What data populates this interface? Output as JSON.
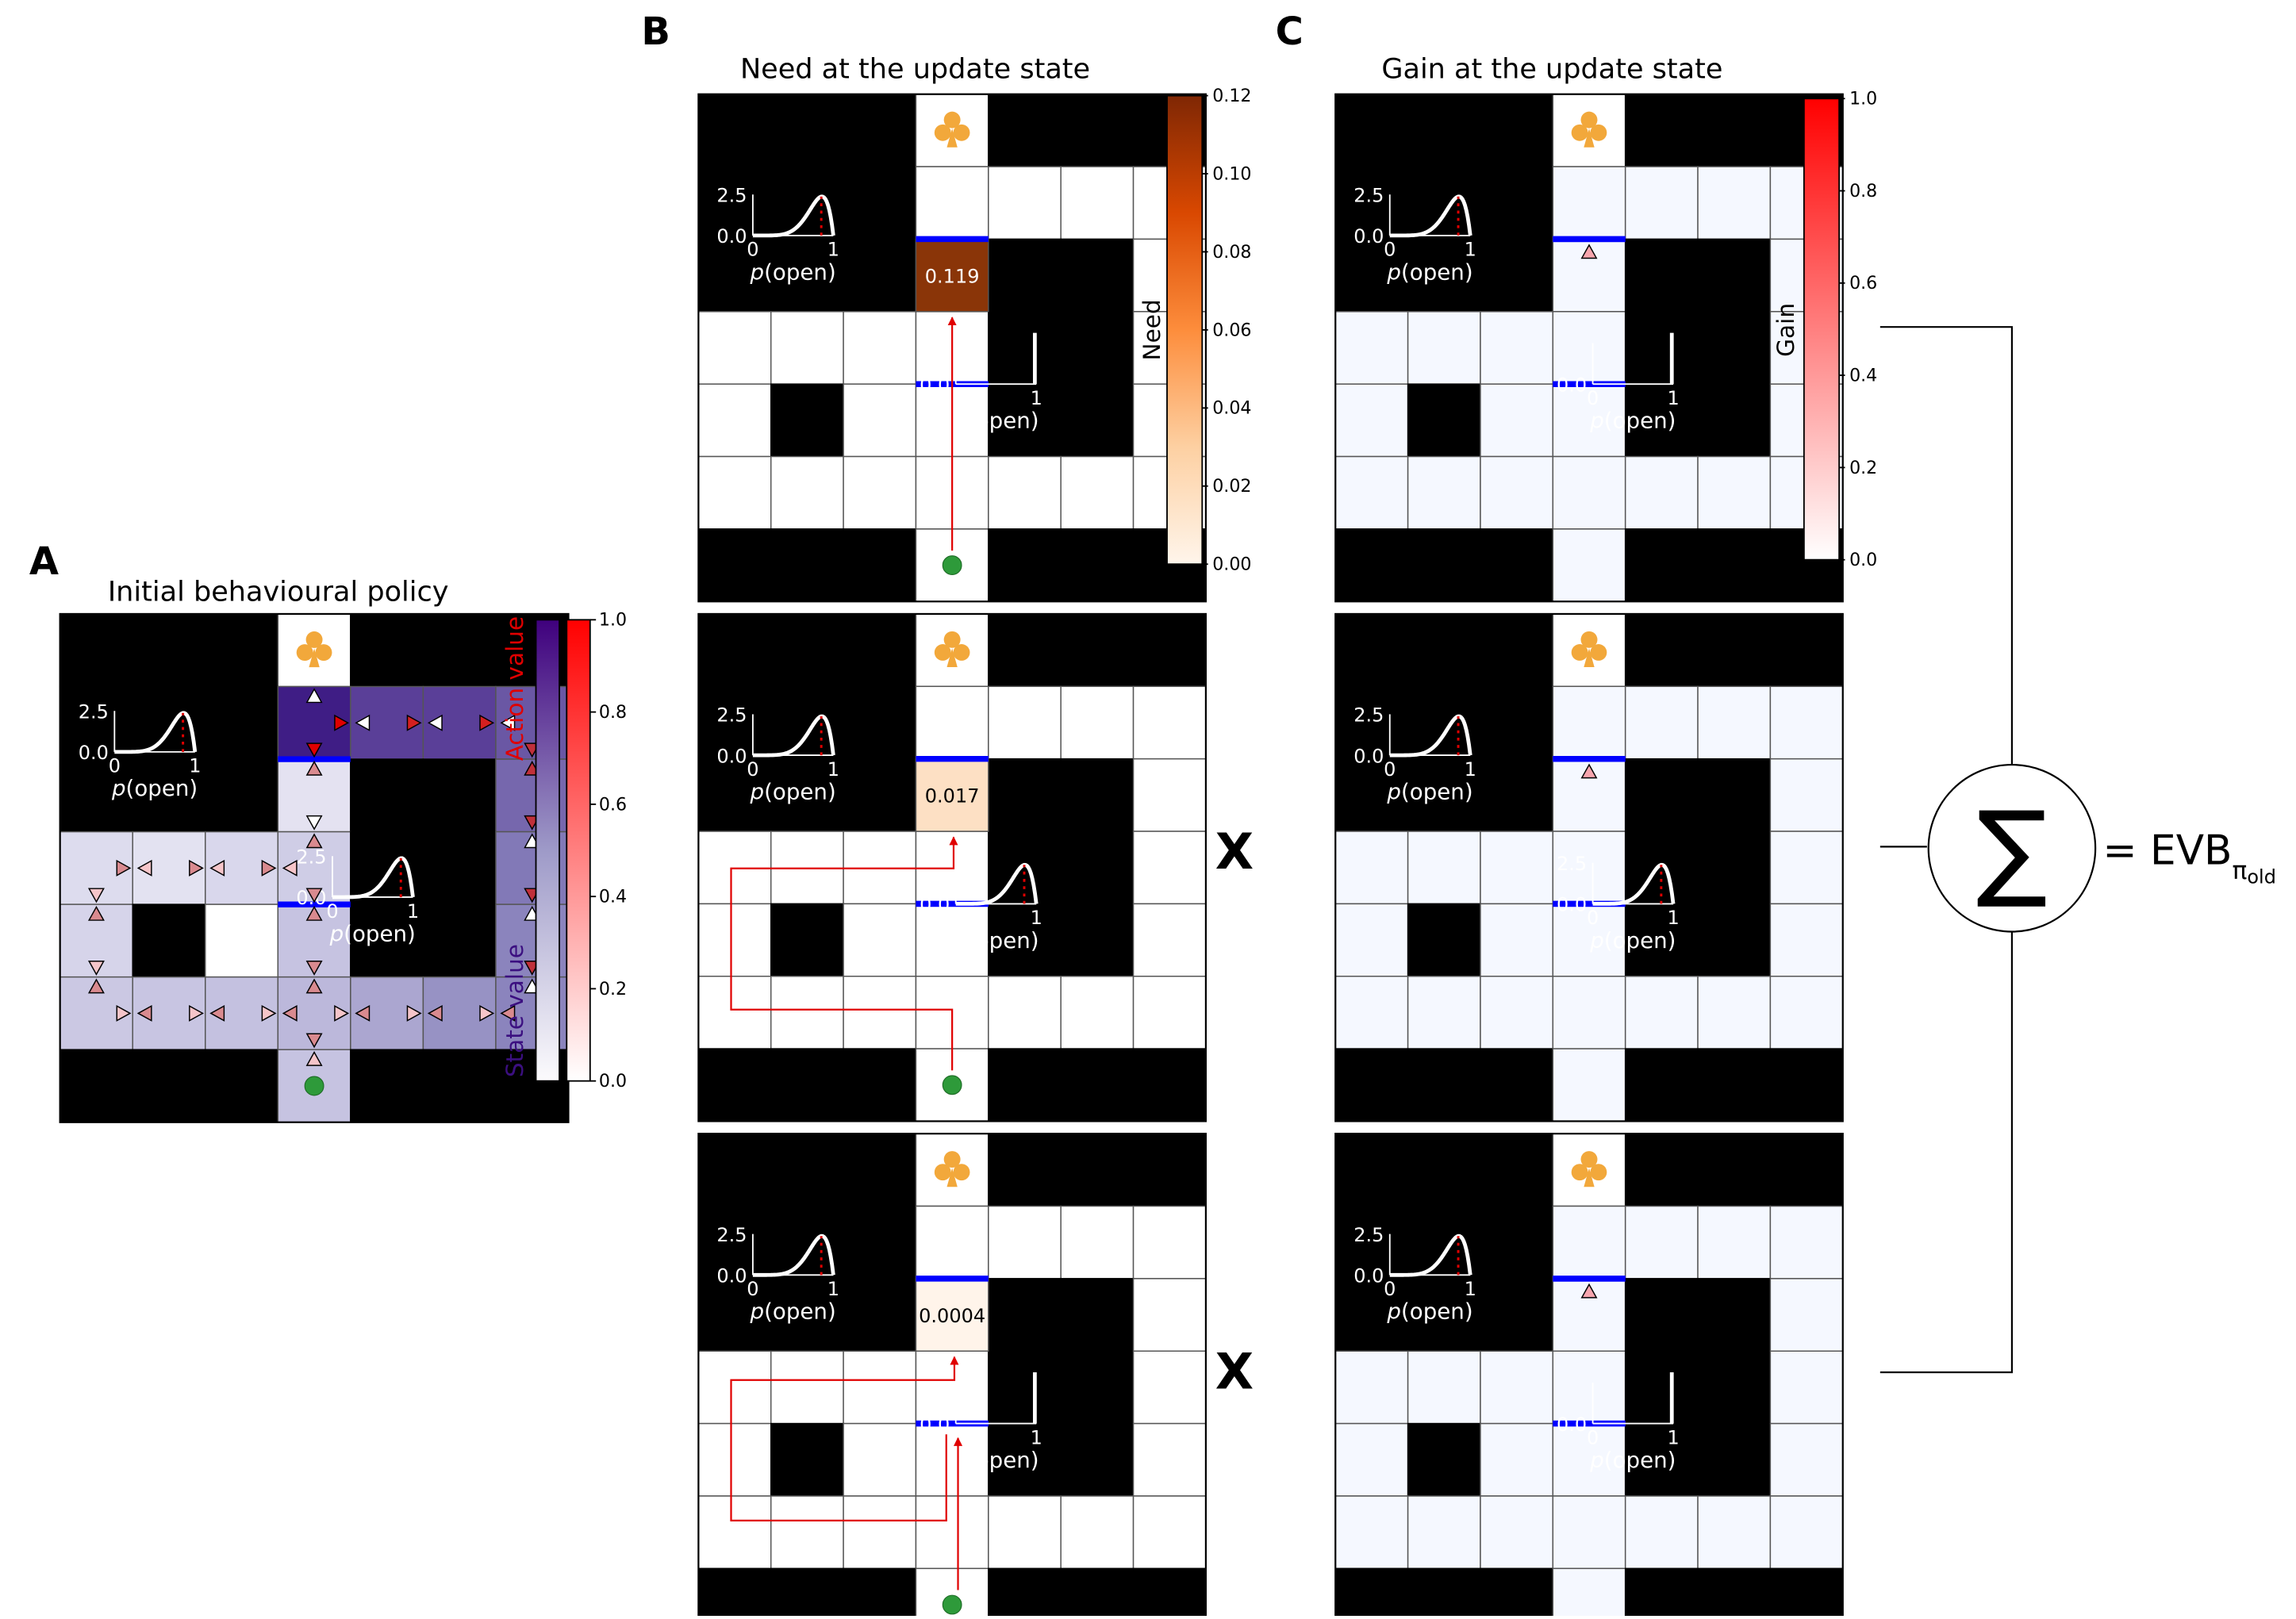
{
  "panel_labels": {
    "a": "A",
    "b": "B",
    "c": "C"
  },
  "titles": {
    "a": "Initial behavioural policy",
    "b": "Need at the update state",
    "c": "Gain at the update state"
  },
  "inset": {
    "y_top": "2.5",
    "y_zero": "0.0",
    "x_zero": "0",
    "x_one": "1",
    "xlabel_p": "p",
    "xlabel_rest": "(open)"
  },
  "multiply_symbol": "X",
  "sum_symbol": "∑",
  "evb": {
    "eq": "= EVB",
    "sub_pi": "π",
    "sub_old": "old"
  },
  "colorbar_a": {
    "action_label": "Action value",
    "state_label": "State value",
    "ticks": [
      "1.0",
      "0.8",
      "0.6",
      "0.4",
      "0.2",
      "0.0"
    ],
    "action_color": "#ff1a1a",
    "state_color": "#3b0f80"
  },
  "colorbar_b": {
    "label": "Need",
    "ticks": [
      "0.12",
      "0.10",
      "0.08",
      "0.06",
      "0.04",
      "0.02",
      "0.00"
    ]
  },
  "colorbar_c": {
    "label": "Gain",
    "ticks": [
      "1.0",
      "0.8",
      "0.6",
      "0.4",
      "0.2",
      "0.0"
    ]
  },
  "need_values": [
    "0.119",
    "0.017",
    "0.0004"
  ],
  "need_colors": [
    "#8a3508",
    "#fde0c4",
    "#fff4ea"
  ],
  "colors": {
    "wall": "#000000",
    "barrier": "#0000ff",
    "goal_icon": "#f2a83b",
    "start_dot": "#2e9a3a",
    "path": "#e00000",
    "gain_cell": "#f5f8ff",
    "gain_marker": "#f7a5ad"
  },
  "icons": {
    "goal": "club-icon",
    "start": "start-dot-icon"
  },
  "maze_layout": [
    "WWWGWWW",
    "WWW....",
    "WWW.WW.",
    "....WW.",
    ".W..WW.",
    ".......",
    "WWWSWWW"
  ]
}
